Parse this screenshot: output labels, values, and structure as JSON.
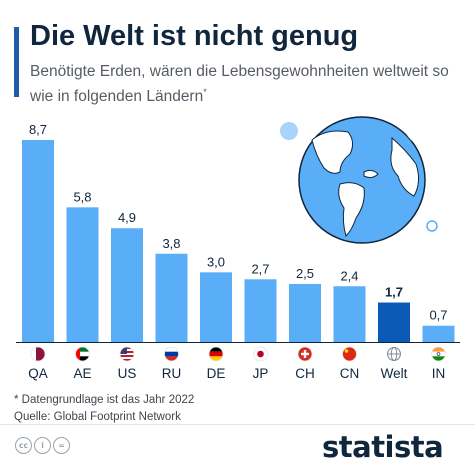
{
  "title": "Die Welt ist nicht genug",
  "subtitle": "Benötigte Erden, wären die Lebensgewohnheiten weltweit so wie in folgenden Ländern",
  "subtitle_mark": "*",
  "footnotes": {
    "note": "* Datengrundlage ist das Jahr 2022",
    "source": "Quelle: Global Footprint Network"
  },
  "brand": "statista",
  "colors": {
    "bar": "#5aaef7",
    "highlight": "#0b5ab6",
    "title": "#10263d",
    "globe": "#5aaef7"
  },
  "icons": [
    "creative-commons-icon",
    "attribution-icon",
    "no-derivatives-icon",
    "globe-illustration"
  ],
  "chart_data": {
    "type": "bar",
    "categories": [
      "QA",
      "AE",
      "US",
      "RU",
      "DE",
      "JP",
      "CH",
      "CN",
      "Welt",
      "IN"
    ],
    "values": [
      8.7,
      5.8,
      4.9,
      3.8,
      3.0,
      2.7,
      2.5,
      2.4,
      1.7,
      0.7
    ],
    "value_labels": [
      "8,7",
      "5,8",
      "4,9",
      "3,8",
      "3,0",
      "2,7",
      "2,5",
      "2,4",
      "1,7",
      "0,7"
    ],
    "highlight": "Welt",
    "flags": [
      "qatar-flag",
      "uae-flag",
      "usa-flag",
      "russia-flag",
      "germany-flag",
      "japan-flag",
      "switzerland-flag",
      "china-flag",
      "world-icon",
      "india-flag"
    ],
    "ylim": [
      0,
      8.7
    ]
  }
}
